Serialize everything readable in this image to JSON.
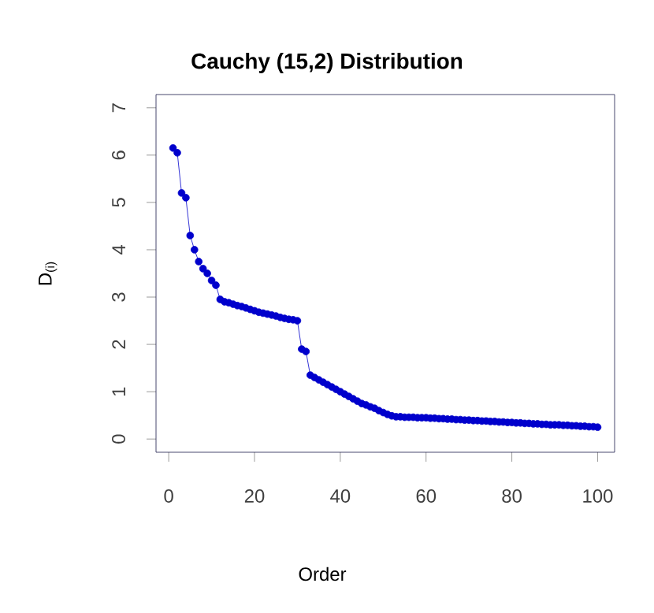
{
  "chart_data": {
    "type": "line",
    "title": "**Cauchy (15,2) Distribution**",
    "xlabel": "Order",
    "ylabel": "D$_{(i)}$",
    "x": [
      1,
      2,
      3,
      4,
      5,
      6,
      7,
      8,
      9,
      10,
      11,
      12,
      13,
      14,
      15,
      16,
      17,
      18,
      19,
      20,
      21,
      22,
      23,
      24,
      25,
      26,
      27,
      28,
      29,
      30,
      31,
      32,
      33,
      34,
      35,
      36,
      37,
      38,
      39,
      40,
      41,
      42,
      43,
      44,
      45,
      46,
      47,
      48,
      49,
      50,
      51,
      52,
      53,
      54,
      55,
      56,
      57,
      58,
      59,
      60,
      61,
      62,
      63,
      64,
      65,
      66,
      67,
      68,
      69,
      70,
      71,
      72,
      73,
      74,
      75,
      76,
      77,
      78,
      79,
      80,
      81,
      82,
      83,
      84,
      85,
      86,
      87,
      88,
      89,
      90,
      91,
      92,
      93,
      94,
      95,
      96,
      97,
      98,
      99,
      100
    ],
    "series": [
      {
        "color": "#0000cc",
        "values": [
          6.15,
          6.05,
          5.2,
          5.1,
          4.3,
          4.0,
          3.75,
          3.6,
          3.5,
          3.35,
          3.25,
          2.95,
          2.9,
          2.88,
          2.85,
          2.82,
          2.8,
          2.77,
          2.74,
          2.71,
          2.68,
          2.66,
          2.64,
          2.62,
          2.6,
          2.57,
          2.55,
          2.53,
          2.52,
          2.5,
          1.9,
          1.85,
          1.35,
          1.3,
          1.25,
          1.2,
          1.15,
          1.1,
          1.05,
          1.0,
          0.95,
          0.9,
          0.85,
          0.8,
          0.75,
          0.72,
          0.68,
          0.65,
          0.6,
          0.56,
          0.52,
          0.49,
          0.47,
          0.47,
          0.46,
          0.46,
          0.46,
          0.45,
          0.45,
          0.45,
          0.44,
          0.44,
          0.43,
          0.43,
          0.42,
          0.42,
          0.41,
          0.41,
          0.4,
          0.4,
          0.39,
          0.39,
          0.38,
          0.38,
          0.37,
          0.37,
          0.36,
          0.36,
          0.35,
          0.35,
          0.34,
          0.34,
          0.33,
          0.33,
          0.32,
          0.32,
          0.31,
          0.31,
          0.3,
          0.3,
          0.3,
          0.29,
          0.29,
          0.28,
          0.28,
          0.27,
          0.27,
          0.26,
          0.26,
          0.25
        ]
      }
    ],
    "xlim": [
      -2.96,
      103.96
    ],
    "ylim": [
      -0.28,
      7.28
    ],
    "xticks": [
      0,
      20,
      40,
      60,
      80,
      100
    ],
    "yticks": [
      0,
      1,
      2,
      3,
      4,
      5,
      6,
      7
    ],
    "marker": "circle",
    "line_style": "solid",
    "grid": false
  }
}
